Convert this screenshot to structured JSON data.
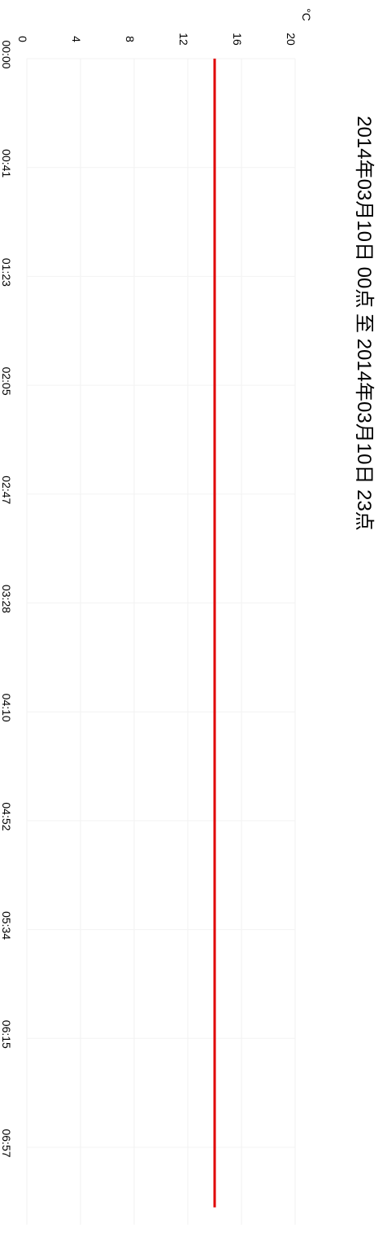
{
  "chart_data": {
    "type": "line",
    "title": "2014年03月10日 00点 至 2014年03月10日 23点",
    "ylabel": "°C",
    "xlabel": "",
    "ylim": [
      0,
      20
    ],
    "y_ticks": [
      "0",
      "4",
      "8",
      "12",
      "16",
      "20"
    ],
    "x_ticks": [
      "00:00",
      "00:41",
      "01:23",
      "02:05",
      "02:47",
      "03:28",
      "04:10",
      "04:52",
      "05:34",
      "06:15",
      "06:57"
    ],
    "grid": true,
    "orientation": "rotated-90-clockwise",
    "series": [
      {
        "color": "#e00000",
        "x": [
          "00:00",
          "06:57",
          "07:20"
        ],
        "values": [
          14.0,
          14.0,
          14.0
        ]
      }
    ]
  }
}
